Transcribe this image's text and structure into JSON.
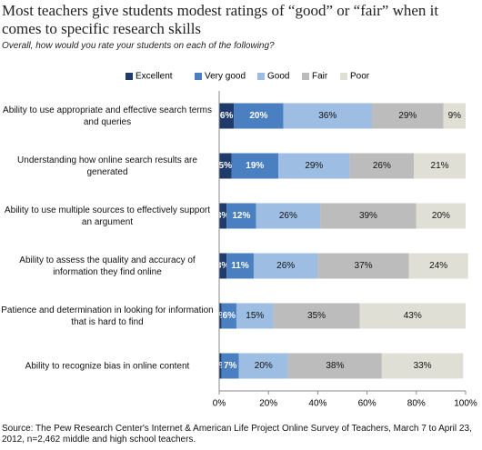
{
  "chart_data": {
    "type": "stacked_barh",
    "title": "Most teachers give students modest ratings of “good” or “fair” when it comes to specific research skills",
    "subtitle": "Overall, how would you rate your students on each of the following?",
    "categories": [
      "Ability to use appropriate and effective search terms and queries",
      "Understanding how online search results are generated",
      "Ability to use multiple sources to effectively support an argument",
      "Ability to assess the quality and accuracy of information they find online",
      "Patience and determination in looking for information that is hard to find",
      "Ability to recognize bias in online content"
    ],
    "series": [
      {
        "name": "Excellent",
        "color": "#1f3b6b",
        "values": [
          6,
          5,
          3,
          3,
          1,
          1
        ],
        "value_labels": [
          "6%",
          "5%",
          "3%",
          "3%",
          "1%",
          "1%"
        ]
      },
      {
        "name": "Very good",
        "color": "#4a7fc1",
        "values": [
          20,
          19,
          12,
          11,
          6,
          7
        ],
        "value_labels": [
          "20%",
          "19%",
          "12%",
          "11%",
          "6%",
          "7%"
        ]
      },
      {
        "name": "Good",
        "color": "#9dbde2",
        "values": [
          36,
          29,
          26,
          26,
          15,
          20
        ],
        "value_labels": [
          "36%",
          "29%",
          "26%",
          "26%",
          "15%",
          "20%"
        ]
      },
      {
        "name": "Fair",
        "color": "#bcbcbc",
        "values": [
          29,
          26,
          39,
          37,
          35,
          38
        ],
        "value_labels": [
          "29%",
          "26%",
          "39%",
          "37%",
          "35%",
          "38%"
        ]
      },
      {
        "name": "Poor",
        "color": "#e0dfd6",
        "values": [
          9,
          21,
          20,
          24,
          43,
          33
        ],
        "value_labels": [
          "9%",
          "21%",
          "20%",
          "24%",
          "43%",
          "33%"
        ]
      }
    ],
    "xlim": [
      0,
      100
    ],
    "xticks": [
      {
        "value": 0,
        "label": "0%"
      },
      {
        "value": 20,
        "label": "20%"
      },
      {
        "value": 40,
        "label": "40%"
      },
      {
        "value": 60,
        "label": "60%"
      },
      {
        "value": 80,
        "label": "80%"
      },
      {
        "value": 100,
        "label": "100%"
      }
    ],
    "legend": "top",
    "source": "Source: The Pew Research Center's Internet & American Life Project Online Survey of Teachers, March 7 to April 23, 2012, n=2,462 middle and high school teachers."
  }
}
